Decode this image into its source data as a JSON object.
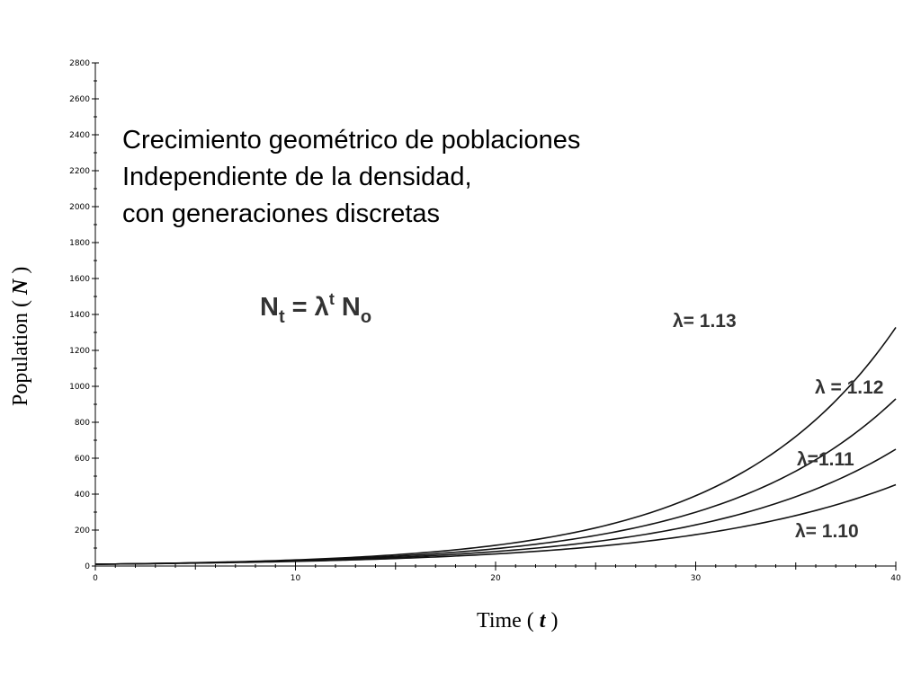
{
  "chart_data": {
    "type": "line",
    "title": [
      "Crecimiento geométrico de poblaciones",
      "Independiente de la densidad,",
      "con generaciones discretas"
    ],
    "formula": {
      "main1": "N",
      "sub1": "t",
      "main2": " = λ",
      "sup": "t",
      "main3": " N",
      "sub2": "o"
    },
    "xlabel": {
      "text": "Time ( ",
      "var": "t",
      "close": " )"
    },
    "ylabel": {
      "text": "Population ( ",
      "var": "N",
      "close": " )"
    },
    "xlim": [
      0,
      40
    ],
    "ylim": [
      0,
      2800
    ],
    "x_ticks": [
      0,
      10,
      20,
      30,
      40
    ],
    "y_ticks": [
      0,
      200,
      400,
      600,
      800,
      1000,
      1200,
      1400,
      1600,
      1800,
      2000,
      2200,
      2400,
      2600,
      2800
    ],
    "initial_population": 10,
    "series": [
      {
        "name": "λ= 1.13",
        "lambda": 1.13
      },
      {
        "name": "λ = 1.12",
        "lambda": 1.12
      },
      {
        "name": "λ=1.11",
        "lambda": 1.11
      },
      {
        "name": "λ= 1.10",
        "lambda": 1.1
      }
    ],
    "grid": false,
    "legend": "inline labels"
  }
}
